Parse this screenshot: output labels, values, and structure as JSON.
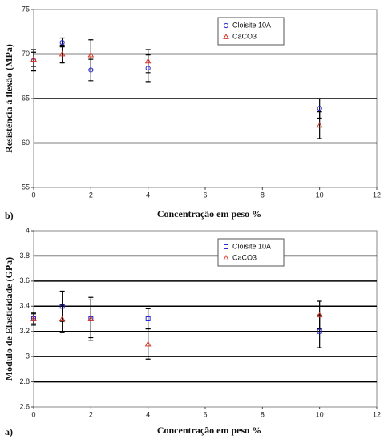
{
  "chart_data": [
    {
      "type": "scatter",
      "panel_label": "b)",
      "x_label": "Concentração em peso %",
      "y_label": "Resistência à flexão (MPa)",
      "x": [
        0,
        1,
        2,
        4,
        10
      ],
      "series": [
        {
          "name": "Cloisite 10A",
          "color": "#2a2ad8",
          "marker": "circle",
          "values": [
            69.3,
            71.3,
            68.2,
            68.4,
            63.9
          ],
          "errors": [
            1.2,
            0.5,
            1.2,
            1.5,
            1.1
          ]
        },
        {
          "name": "CaCO3",
          "color": "#d83a2a",
          "marker": "triangle",
          "values": [
            69.4,
            70.0,
            69.9,
            69.2,
            62.0
          ],
          "errors": [
            0.8,
            1.0,
            1.7,
            1.3,
            1.5
          ]
        }
      ],
      "xlim": [
        0,
        12
      ],
      "xticks": [
        0,
        2,
        4,
        6,
        8,
        10,
        12
      ],
      "ylim": [
        55,
        75
      ],
      "yticks": [
        55,
        60,
        65,
        70,
        75
      ],
      "grid": true
    },
    {
      "type": "scatter",
      "panel_label": "a)",
      "x_label": "Concentração em peso %",
      "y_label": "Módulo de Elasticidade (GPa)",
      "x": [
        0,
        1,
        2,
        4,
        10
      ],
      "series": [
        {
          "name": "Cloisite 10A",
          "color": "#2a2ad8",
          "marker": "square",
          "values": [
            3.3,
            3.4,
            3.3,
            3.3,
            3.2
          ],
          "errors": [
            0.05,
            0.12,
            0.17,
            0.08,
            0.13
          ]
        },
        {
          "name": "CaCO3",
          "color": "#d83a2a",
          "marker": "triangle",
          "values": [
            3.3,
            3.3,
            3.3,
            3.1,
            3.33
          ],
          "errors": [
            0.04,
            0.11,
            0.15,
            0.12,
            0.11
          ]
        }
      ],
      "xlim": [
        0,
        12
      ],
      "xticks": [
        0,
        2,
        4,
        6,
        8,
        10,
        12
      ],
      "ylim": [
        2.6,
        4
      ],
      "yticks": [
        2.6,
        2.8,
        3,
        3.2,
        3.4,
        3.6,
        3.8,
        4
      ],
      "grid": true
    }
  ]
}
